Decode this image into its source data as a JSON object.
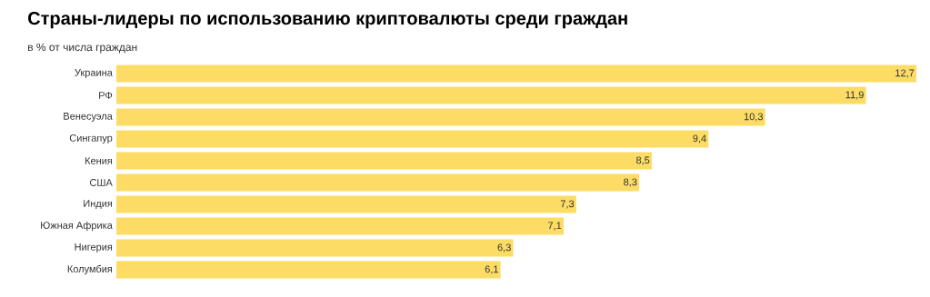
{
  "chart_data": {
    "type": "bar",
    "orientation": "horizontal",
    "title": "Страны-лидеры по использованию криптовалюты среди граждан",
    "subtitle": "в % от числа граждан",
    "categories": [
      "Украина",
      "РФ",
      "Венесуэла",
      "Сингапур",
      "Кения",
      "США",
      "Индия",
      "Южная Африка",
      "Нигерия",
      "Колумбия"
    ],
    "values": [
      12.7,
      11.9,
      10.3,
      9.4,
      8.5,
      8.3,
      7.3,
      7.1,
      6.3,
      6.1
    ],
    "value_labels": [
      "12,7",
      "11,9",
      "10,3",
      "9,4",
      "8,5",
      "8,3",
      "7,3",
      "7,1",
      "6,3",
      "6,1"
    ],
    "color": "#fcdc65"
  }
}
